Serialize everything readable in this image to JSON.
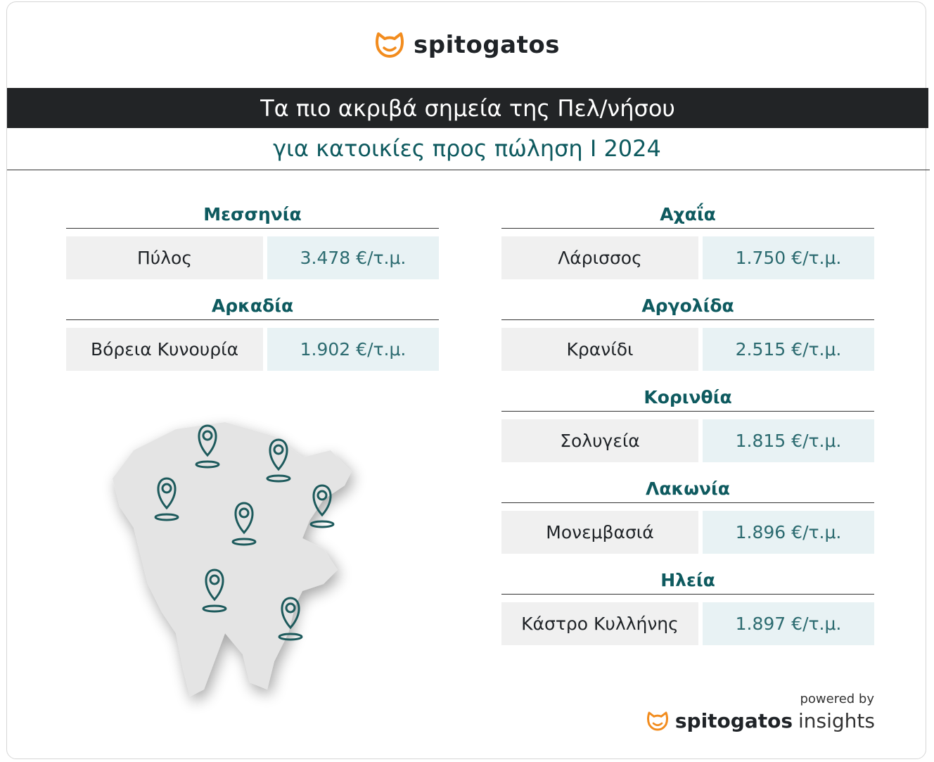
{
  "header": {
    "logo": "spitogatos",
    "title": "Τα πιο ακριβά σημεία της Πελ/νήσου",
    "subtitle": "για κατοικίες προς πώληση I 2024"
  },
  "left": [
    {
      "region": "Μεσσηνία",
      "place": "Πύλος",
      "price": "3.478 €/τ.μ."
    },
    {
      "region": "Αρκαδία",
      "place": "Βόρεια Κυνουρία",
      "price": "1.902 €/τ.μ."
    }
  ],
  "right": [
    {
      "region": "Αχαΐα",
      "place": "Λάρισσος",
      "price": "1.750 €/τ.μ."
    },
    {
      "region": "Αργολίδα",
      "place": "Κρανίδι",
      "price": "2.515 €/τ.μ."
    },
    {
      "region": "Κορινθία",
      "place": "Σολυγεία",
      "price": "1.815 €/τ.μ."
    },
    {
      "region": "Λακωνία",
      "place": "Μονεμβασιά",
      "price": "1.896 €/τ.μ."
    },
    {
      "region": "Ηλεία",
      "place": "Κάστρο Κυλλήνης",
      "price": "1.897 €/τ.μ."
    }
  ],
  "footer": {
    "powered_by": "powered by",
    "brand": "spitogatos",
    "product": "insights"
  }
}
